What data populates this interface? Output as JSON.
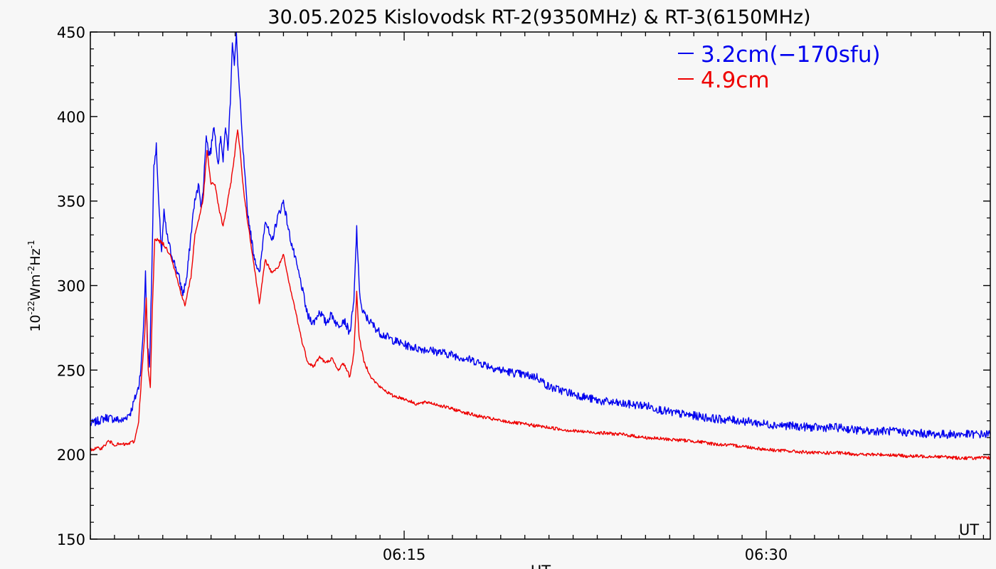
{
  "chart_data": {
    "type": "line",
    "title": "30.05.2025 Kislovodsk RT-2(9350MHz) & RT-3(6150MHz)",
    "ylabel": {
      "base": "10",
      "exp1": "-22",
      "mid": "Wm",
      "exp2": "-2",
      "mid2": "Hz",
      "exp3": "-1"
    },
    "xlabel": "UT",
    "corner_label": "UT",
    "ylim": [
      150,
      450
    ],
    "xlim": [
      "06:02",
      "06:39:17"
    ],
    "x_units": "UT time (HH:MM:SS)",
    "yticks": [
      "150",
      "200",
      "250",
      "300",
      "350",
      "400",
      "450"
    ],
    "xticks": [
      {
        "value": "06:15:00",
        "label": "06:15"
      },
      {
        "value": "06:30:00",
        "label": "06:30"
      }
    ],
    "grid": false,
    "legend_position": "top-right",
    "series": [
      {
        "name": "3.2cm(−170sfu)",
        "color": "#0000ee",
        "points": [
          [
            "06:02:00",
            218
          ],
          [
            "06:02:20",
            220
          ],
          [
            "06:02:40",
            222
          ],
          [
            "06:03:00",
            221
          ],
          [
            "06:03:20",
            220
          ],
          [
            "06:03:40",
            225
          ],
          [
            "06:04:00",
            240
          ],
          [
            "06:04:07",
            255
          ],
          [
            "06:04:13",
            280
          ],
          [
            "06:04:17",
            307
          ],
          [
            "06:04:22",
            265
          ],
          [
            "06:04:27",
            252
          ],
          [
            "06:04:32",
            300
          ],
          [
            "06:04:38",
            372
          ],
          [
            "06:04:44",
            382
          ],
          [
            "06:04:50",
            348
          ],
          [
            "06:04:57",
            320
          ],
          [
            "06:05:03",
            343
          ],
          [
            "06:05:10",
            330
          ],
          [
            "06:05:20",
            320
          ],
          [
            "06:05:40",
            305
          ],
          [
            "06:05:50",
            295
          ],
          [
            "06:06:00",
            305
          ],
          [
            "06:06:10",
            330
          ],
          [
            "06:06:18",
            348
          ],
          [
            "06:06:25",
            355
          ],
          [
            "06:06:30",
            360
          ],
          [
            "06:06:36",
            345
          ],
          [
            "06:06:42",
            362
          ],
          [
            "06:06:48",
            390
          ],
          [
            "06:06:54",
            378
          ],
          [
            "06:07:00",
            380
          ],
          [
            "06:07:06",
            395
          ],
          [
            "06:07:12",
            385
          ],
          [
            "06:07:18",
            372
          ],
          [
            "06:07:24",
            390
          ],
          [
            "06:07:30",
            373
          ],
          [
            "06:07:36",
            395
          ],
          [
            "06:07:42",
            380
          ],
          [
            "06:07:48",
            410
          ],
          [
            "06:07:53",
            445
          ],
          [
            "06:07:58",
            430
          ],
          [
            "06:08:03",
            448
          ],
          [
            "06:08:08",
            425
          ],
          [
            "06:08:12",
            410
          ],
          [
            "06:08:18",
            385
          ],
          [
            "06:08:24",
            365
          ],
          [
            "06:08:30",
            345
          ],
          [
            "06:08:45",
            320
          ],
          [
            "06:09:00",
            306
          ],
          [
            "06:09:15",
            340
          ],
          [
            "06:09:30",
            325
          ],
          [
            "06:09:45",
            340
          ],
          [
            "06:10:00",
            350
          ],
          [
            "06:10:15",
            330
          ],
          [
            "06:10:30",
            315
          ],
          [
            "06:10:45",
            300
          ],
          [
            "06:11:00",
            282
          ],
          [
            "06:11:15",
            278
          ],
          [
            "06:11:30",
            285
          ],
          [
            "06:11:45",
            278
          ],
          [
            "06:12:00",
            283
          ],
          [
            "06:12:15",
            276
          ],
          [
            "06:12:30",
            280
          ],
          [
            "06:12:45",
            272
          ],
          [
            "06:12:55",
            290
          ],
          [
            "06:13:02",
            334
          ],
          [
            "06:13:08",
            300
          ],
          [
            "06:13:15",
            285
          ],
          [
            "06:13:30",
            280
          ],
          [
            "06:14:00",
            272
          ],
          [
            "06:14:30",
            268
          ],
          [
            "06:15:00",
            265
          ],
          [
            "06:15:30",
            263
          ],
          [
            "06:16:00",
            262
          ],
          [
            "06:17:00",
            259
          ],
          [
            "06:18:00",
            255
          ],
          [
            "06:19:00",
            250
          ],
          [
            "06:20:00",
            247
          ],
          [
            "06:20:30",
            246
          ],
          [
            "06:21:00",
            240
          ],
          [
            "06:22:00",
            236
          ],
          [
            "06:23:00",
            232
          ],
          [
            "06:24:00",
            230
          ],
          [
            "06:25:00",
            229
          ],
          [
            "06:26:00",
            225
          ],
          [
            "06:27:00",
            223
          ],
          [
            "06:28:00",
            221
          ],
          [
            "06:29:00",
            220
          ],
          [
            "06:30:00",
            218
          ],
          [
            "06:31:00",
            217
          ],
          [
            "06:32:00",
            216
          ],
          [
            "06:33:00",
            216
          ],
          [
            "06:34:00",
            214
          ],
          [
            "06:35:00",
            214
          ],
          [
            "06:36:00",
            213
          ],
          [
            "06:37:00",
            212
          ],
          [
            "06:38:00",
            212
          ],
          [
            "06:39:17",
            212
          ]
        ]
      },
      {
        "name": "4.9cm",
        "color": "#ee0000",
        "points": [
          [
            "06:02:00",
            203
          ],
          [
            "06:02:30",
            204
          ],
          [
            "06:02:45",
            208
          ],
          [
            "06:03:00",
            206
          ],
          [
            "06:03:30",
            206
          ],
          [
            "06:03:50",
            208
          ],
          [
            "06:04:00",
            220
          ],
          [
            "06:04:07",
            245
          ],
          [
            "06:04:15",
            270
          ],
          [
            "06:04:19",
            292
          ],
          [
            "06:04:24",
            250
          ],
          [
            "06:04:29",
            240
          ],
          [
            "06:04:34",
            285
          ],
          [
            "06:04:40",
            328
          ],
          [
            "06:05:00",
            325
          ],
          [
            "06:05:20",
            318
          ],
          [
            "06:05:40",
            300
          ],
          [
            "06:05:55",
            288
          ],
          [
            "06:06:10",
            305
          ],
          [
            "06:06:20",
            330
          ],
          [
            "06:06:30",
            340
          ],
          [
            "06:06:40",
            350
          ],
          [
            "06:06:50",
            380
          ],
          [
            "06:07:00",
            360
          ],
          [
            "06:07:10",
            360
          ],
          [
            "06:07:20",
            345
          ],
          [
            "06:07:30",
            335
          ],
          [
            "06:07:40",
            348
          ],
          [
            "06:07:50",
            362
          ],
          [
            "06:08:00",
            380
          ],
          [
            "06:08:06",
            393
          ],
          [
            "06:08:12",
            380
          ],
          [
            "06:08:20",
            358
          ],
          [
            "06:08:30",
            340
          ],
          [
            "06:08:45",
            315
          ],
          [
            "06:09:00",
            290
          ],
          [
            "06:09:15",
            315
          ],
          [
            "06:09:30",
            308
          ],
          [
            "06:09:45",
            310
          ],
          [
            "06:10:00",
            318
          ],
          [
            "06:10:15",
            300
          ],
          [
            "06:10:30",
            285
          ],
          [
            "06:10:45",
            268
          ],
          [
            "06:11:00",
            255
          ],
          [
            "06:11:15",
            252
          ],
          [
            "06:11:30",
            258
          ],
          [
            "06:11:45",
            254
          ],
          [
            "06:12:00",
            257
          ],
          [
            "06:12:15",
            250
          ],
          [
            "06:12:30",
            254
          ],
          [
            "06:12:45",
            246
          ],
          [
            "06:12:55",
            260
          ],
          [
            "06:13:02",
            296
          ],
          [
            "06:13:08",
            270
          ],
          [
            "06:13:20",
            255
          ],
          [
            "06:13:40",
            245
          ],
          [
            "06:14:00",
            240
          ],
          [
            "06:14:30",
            235
          ],
          [
            "06:15:00",
            233
          ],
          [
            "06:15:30",
            230
          ],
          [
            "06:16:00",
            231
          ],
          [
            "06:17:00",
            227
          ],
          [
            "06:18:00",
            223
          ],
          [
            "06:19:00",
            220
          ],
          [
            "06:20:00",
            218
          ],
          [
            "06:21:00",
            216
          ],
          [
            "06:22:00",
            214
          ],
          [
            "06:23:00",
            213
          ],
          [
            "06:24:00",
            212
          ],
          [
            "06:25:00",
            210
          ],
          [
            "06:26:00",
            209
          ],
          [
            "06:27:00",
            208
          ],
          [
            "06:28:00",
            206
          ],
          [
            "06:29:00",
            205
          ],
          [
            "06:30:00",
            203
          ],
          [
            "06:31:00",
            202
          ],
          [
            "06:32:00",
            201
          ],
          [
            "06:33:00",
            201
          ],
          [
            "06:34:00",
            200
          ],
          [
            "06:35:00",
            200
          ],
          [
            "06:36:00",
            199
          ],
          [
            "06:37:00",
            199
          ],
          [
            "06:38:00",
            198
          ],
          [
            "06:39:17",
            198
          ]
        ]
      }
    ]
  }
}
